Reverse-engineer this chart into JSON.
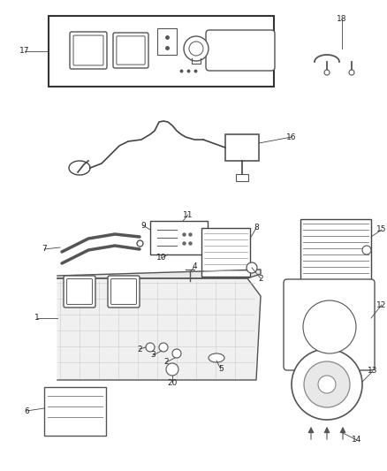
{
  "bg_color": "#ffffff",
  "fig_width": 4.38,
  "fig_height": 5.33,
  "dpi": 100,
  "line_color": "#444444",
  "text_color": "#222222",
  "font_size": 6.5
}
